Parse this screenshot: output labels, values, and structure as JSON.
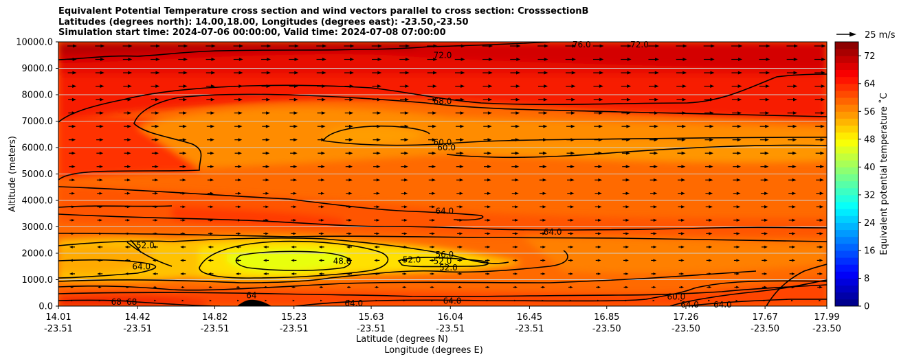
{
  "title_lines": [
    "Equivalent Potential Temperature cross section and wind vectors parallel to cross section: CrosssectionB",
    "Latitudes (degrees north): 14.00,18.00, Longitudes (degrees east): -23.50,-23.50",
    "Simulation start time: 2024-07-06 00:00:00, Valid time: 2024-07-08 07:00:00"
  ],
  "chart_data": {
    "type": "heatmap",
    "subtype": "filled contour cross section with wind vectors",
    "ylabel": "Altitude (meters)",
    "xlabel": "Latitude (degrees N)",
    "xlabel2": "Longitude (degrees E)",
    "ylim": [
      0,
      10000
    ],
    "yticks": [
      "0.0",
      "1000.0",
      "2000.0",
      "3000.0",
      "4000.0",
      "5000.0",
      "6000.0",
      "7000.0",
      "8000.0",
      "9000.0",
      "10000.0"
    ],
    "ytick_values": [
      0,
      1000,
      2000,
      3000,
      4000,
      5000,
      6000,
      7000,
      8000,
      9000,
      10000
    ],
    "xlim": [
      14.01,
      17.99
    ],
    "xtick_values": [
      14.01,
      14.42,
      14.82,
      15.23,
      15.63,
      16.04,
      16.45,
      16.85,
      17.26,
      17.67,
      17.99
    ],
    "xtick_lat": [
      "14.01",
      "14.42",
      "14.82",
      "15.23",
      "15.63",
      "16.04",
      "16.45",
      "16.85",
      "17.26",
      "17.67",
      "17.99"
    ],
    "xtick_lon": [
      "-23.51",
      "-23.51",
      "-23.51",
      "-23.51",
      "-23.51",
      "-23.51",
      "-23.51",
      "-23.50",
      "-23.50",
      "-23.50",
      "-23.50"
    ],
    "grid": true,
    "colorbar": {
      "label": "Equivalent potential temperature ˚C",
      "range": [
        0,
        76
      ],
      "tick_values": [
        0,
        8,
        16,
        24,
        32,
        40,
        48,
        56,
        64,
        72
      ],
      "ticks": [
        "0",
        "8",
        "16",
        "24",
        "32",
        "40",
        "48",
        "56",
        "64",
        "72"
      ],
      "step": 2,
      "colormap": "jet"
    },
    "quiver_key": {
      "label": "25 m/s",
      "value": 25
    },
    "contour_labels": [
      {
        "text": "72.0",
        "x": 16.0,
        "y": 9500
      },
      {
        "text": "68.0",
        "x": 16.0,
        "y": 7750
      },
      {
        "text": "60.0",
        "x": 16.0,
        "y": 6200
      },
      {
        "text": "60.0",
        "x": 16.02,
        "y": 6000
      },
      {
        "text": "64.0",
        "x": 16.01,
        "y": 3600
      },
      {
        "text": "64.0",
        "x": 16.57,
        "y": 2800
      },
      {
        "text": "56.0",
        "x": 16.01,
        "y": 1950
      },
      {
        "text": "52.0",
        "x": 16.0,
        "y": 1700
      },
      {
        "text": "52.0",
        "x": 16.03,
        "y": 1450
      },
      {
        "text": "52.0",
        "x": 15.84,
        "y": 1750
      },
      {
        "text": "48.0",
        "x": 15.48,
        "y": 1700
      },
      {
        "text": "52.0",
        "x": 14.46,
        "y": 2300
      },
      {
        "text": "64.0",
        "x": 14.44,
        "y": 1500
      },
      {
        "text": "64",
        "x": 15.01,
        "y": 400
      },
      {
        "text": "64.0",
        "x": 15.54,
        "y": 100
      },
      {
        "text": "64.0",
        "x": 16.05,
        "y": 200
      },
      {
        "text": "60.0",
        "x": 17.21,
        "y": 350
      },
      {
        "text": "64.0",
        "x": 17.28,
        "y": 50
      },
      {
        "text": "64.0",
        "x": 17.45,
        "y": 50
      },
      {
        "text": "68",
        "x": 14.31,
        "y": 150
      },
      {
        "text": "68",
        "x": 14.39,
        "y": 150
      },
      {
        "text": "76.0",
        "x": 16.72,
        "y": 9900
      },
      {
        "text": "72.0",
        "x": 17.02,
        "y": 9900
      }
    ]
  }
}
